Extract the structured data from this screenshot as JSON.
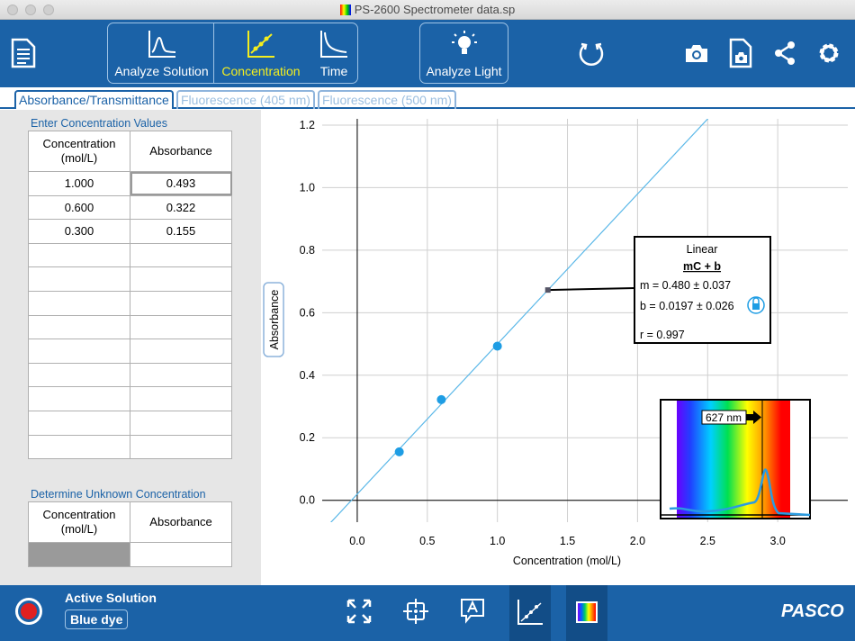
{
  "window": {
    "title": "PS-2600 Spectrometer data.sp"
  },
  "toolbar": {
    "analyze_solution": "Analyze Solution",
    "concentration": "Concentration",
    "time": "Time",
    "analyze_light": "Analyze Light",
    "accent_color": "#1b62a7",
    "active_color": "#f4ee1e"
  },
  "tabs": [
    {
      "label": "Absorbance/Transmittance",
      "active": true
    },
    {
      "label": "Fluorescence (405 nm)",
      "active": false
    },
    {
      "label": "Fluorescence (500 nm)",
      "active": false
    }
  ],
  "concentration_table": {
    "title": "Enter Concentration Values",
    "col1": "Concentration\n(mol/L)",
    "col2": "Absorbance",
    "rows": [
      [
        "1.000",
        "0.493"
      ],
      [
        "0.600",
        "0.322"
      ],
      [
        "0.300",
        "0.155"
      ]
    ],
    "empty_rows": 9
  },
  "unknown_table": {
    "title": "Determine Unknown Concentration",
    "col1": "Concentration\n(mol/L)",
    "col2": "Absorbance"
  },
  "chart_data": {
    "type": "scatter",
    "xlabel": "Concentration (mol/L)",
    "ylabel": "Absorbance",
    "xlim": [
      -0.25,
      3.5
    ],
    "ylim": [
      -0.07,
      1.22
    ],
    "x_ticks": [
      "0.0",
      "0.5",
      "1.0",
      "1.5",
      "2.0",
      "2.5",
      "3.0"
    ],
    "y_ticks": [
      "0.0",
      "0.2",
      "0.4",
      "0.6",
      "0.8",
      "1.0",
      "1.2"
    ],
    "grid": true,
    "points": [
      {
        "x": 0.3,
        "y": 0.155
      },
      {
        "x": 0.6,
        "y": 0.322
      },
      {
        "x": 1.0,
        "y": 0.493
      }
    ],
    "fit": {
      "slope": 0.48,
      "intercept": 0.0197,
      "color": "#5bb8e8"
    },
    "fit_box": {
      "title": "Linear",
      "formula": "mC + b",
      "m_line": "m = 0.480  ± 0.037",
      "b_line": "b  = 0.0197 ± 0.026",
      "r_line": "r = 0.997",
      "anchor_x": 1.36
    },
    "spectrum_inset": {
      "wavelength_label": "627 nm"
    }
  },
  "bottom": {
    "active_solution_label": "Active Solution",
    "solution_name": "Blue dye",
    "brand": "PASCO"
  }
}
